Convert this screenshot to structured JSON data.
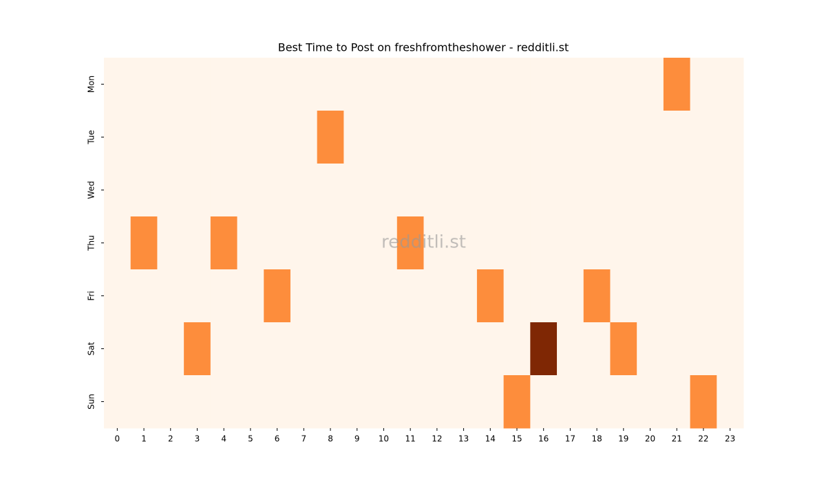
{
  "chart_data": {
    "type": "heatmap",
    "title": "Best Time to Post on freshfromtheshower - redditli.st",
    "watermark": "redditli.st",
    "x": [
      0,
      1,
      2,
      3,
      4,
      5,
      6,
      7,
      8,
      9,
      10,
      11,
      12,
      13,
      14,
      15,
      16,
      17,
      18,
      19,
      20,
      21,
      22,
      23
    ],
    "y": [
      "Mon",
      "Tue",
      "Wed",
      "Thu",
      "Fri",
      "Sat",
      "Sun"
    ],
    "values": [
      [
        0,
        0,
        0,
        0,
        0,
        0,
        0,
        0,
        0,
        0,
        0,
        0,
        0,
        0,
        0,
        0,
        0,
        0,
        0,
        0,
        0,
        1,
        0,
        0
      ],
      [
        0,
        0,
        0,
        0,
        0,
        0,
        0,
        0,
        1,
        0,
        0,
        0,
        0,
        0,
        0,
        0,
        0,
        0,
        0,
        0,
        0,
        0,
        0,
        0
      ],
      [
        0,
        0,
        0,
        0,
        0,
        0,
        0,
        0,
        0,
        0,
        0,
        0,
        0,
        0,
        0,
        0,
        0,
        0,
        0,
        0,
        0,
        0,
        0,
        0
      ],
      [
        0,
        1,
        0,
        0,
        1,
        0,
        0,
        0,
        0,
        0,
        0,
        1,
        0,
        0,
        0,
        0,
        0,
        0,
        0,
        0,
        0,
        0,
        0,
        0
      ],
      [
        0,
        0,
        0,
        0,
        0,
        0,
        1,
        0,
        0,
        0,
        0,
        0,
        0,
        0,
        1,
        0,
        0,
        0,
        1,
        0,
        0,
        0,
        0,
        0
      ],
      [
        0,
        0,
        0,
        1,
        0,
        0,
        0,
        0,
        0,
        0,
        0,
        0,
        0,
        0,
        0,
        0,
        2,
        0,
        0,
        1,
        0,
        0,
        0,
        0
      ],
      [
        0,
        0,
        0,
        0,
        0,
        0,
        0,
        0,
        0,
        0,
        0,
        0,
        0,
        0,
        0,
        1,
        0,
        0,
        0,
        0,
        0,
        0,
        1,
        0
      ]
    ],
    "colors": [
      "#fff5eb",
      "#fd8d3c",
      "#7f2704"
    ]
  }
}
